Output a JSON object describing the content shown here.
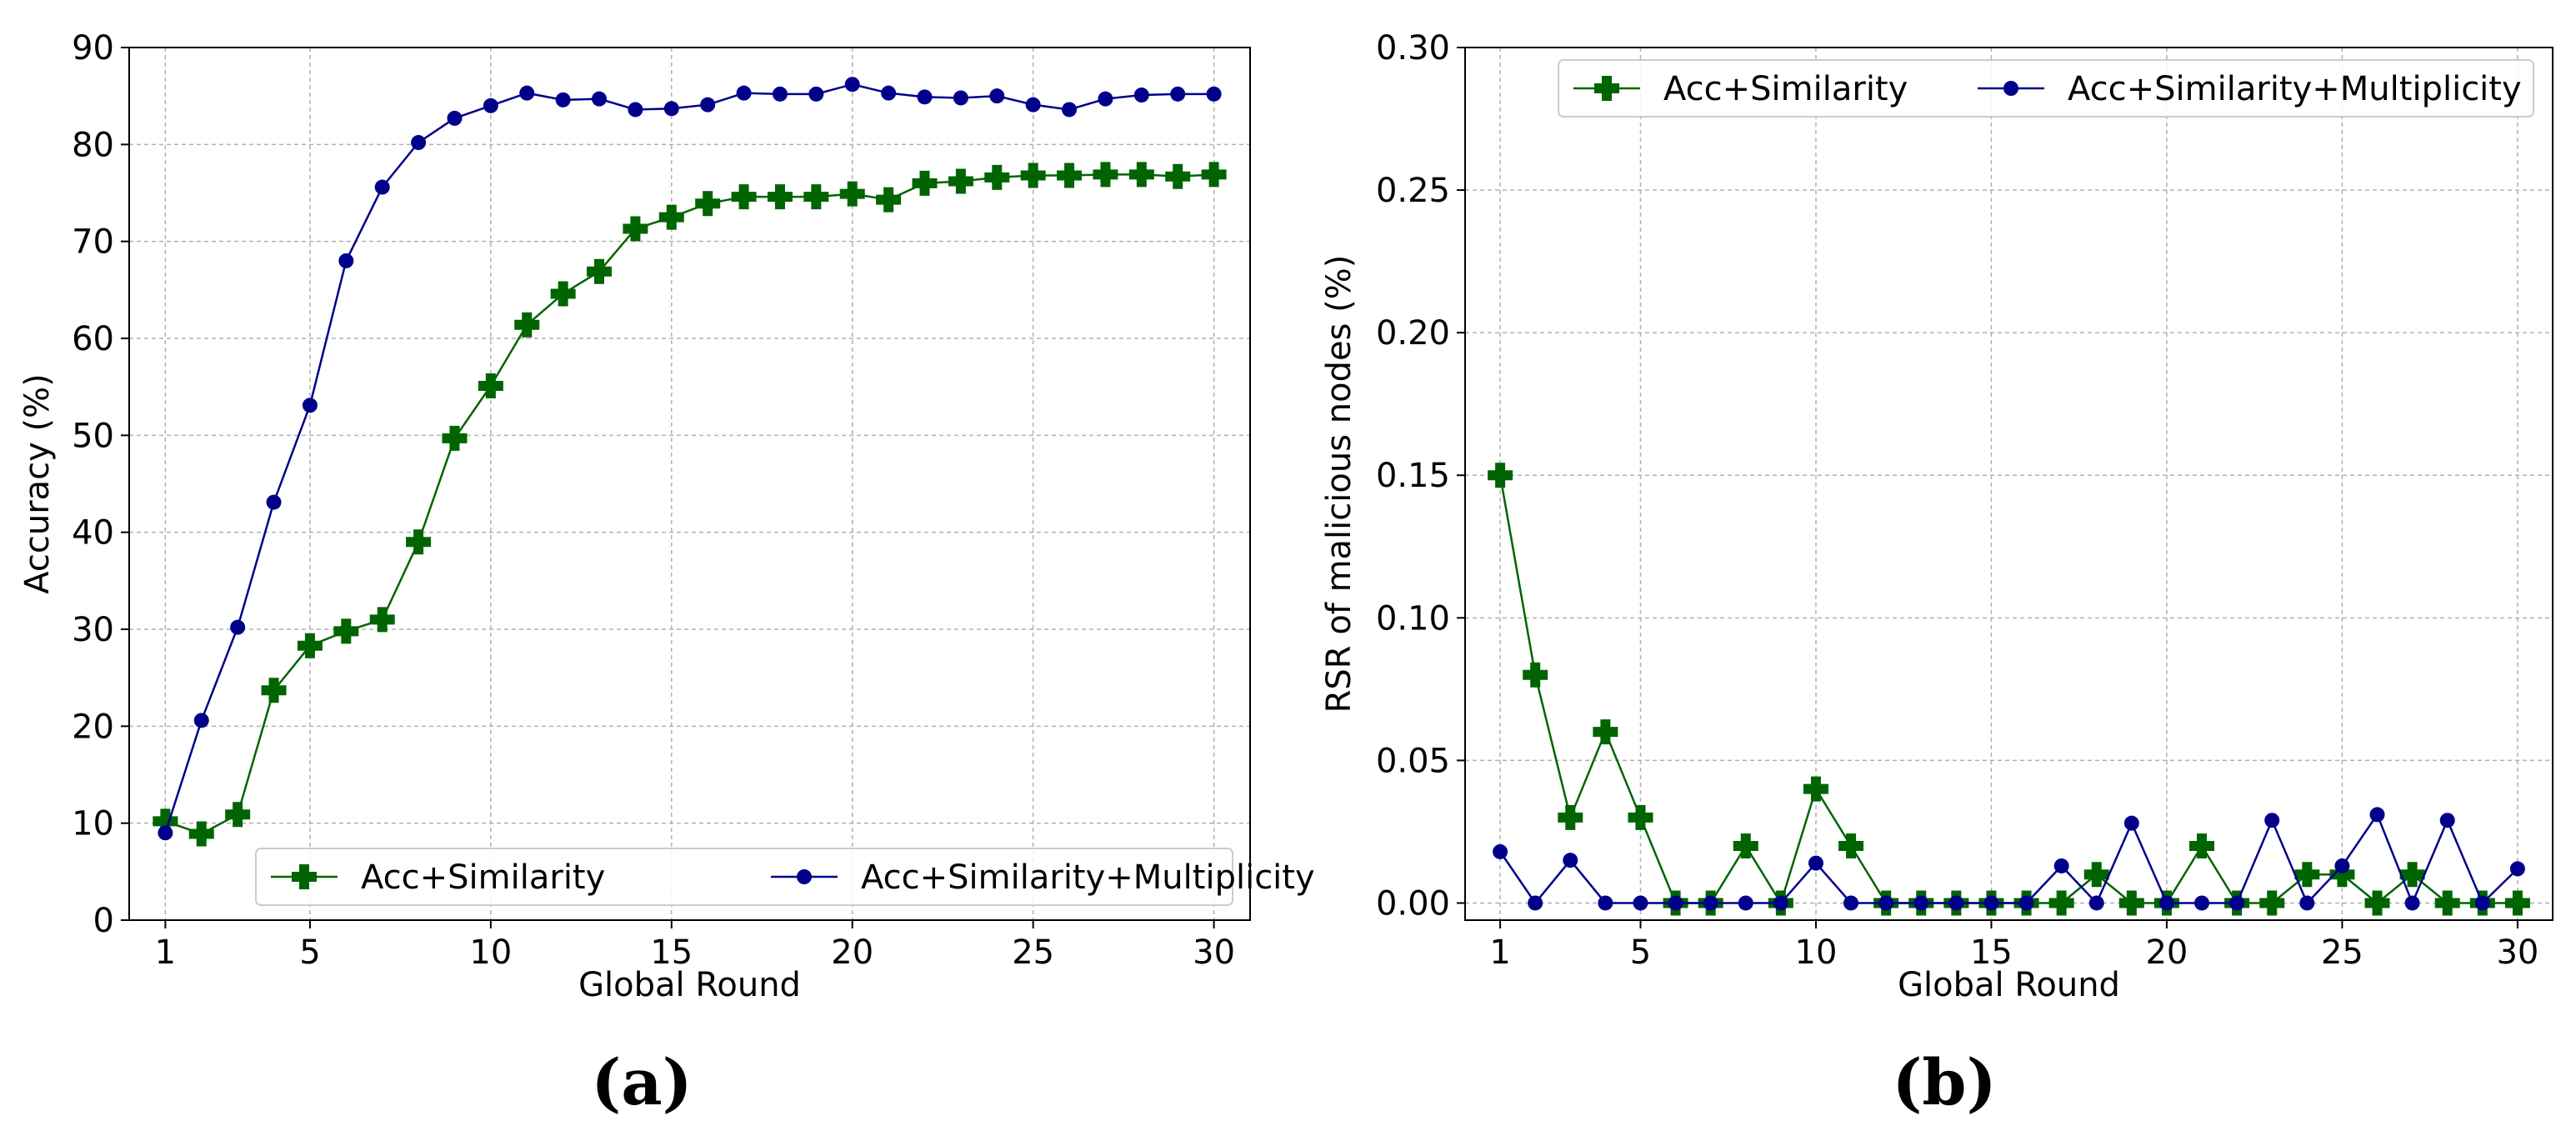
{
  "colors": {
    "green": "#006400",
    "navy": "#00008b",
    "grid": "#b0b0b0"
  },
  "chart_data": [
    {
      "type": "line",
      "panel_label": "(a)",
      "xlabel": "Global Round",
      "ylabel": "Accuracy (%)",
      "xlim": [
        0,
        31
      ],
      "ylim": [
        0,
        90
      ],
      "xticks": [
        1,
        5,
        10,
        15,
        20,
        25,
        30
      ],
      "xtick_labels": [
        "1",
        "5",
        "10",
        "15",
        "20",
        "25",
        "30"
      ],
      "yticks": [
        0,
        10,
        20,
        30,
        40,
        50,
        60,
        70,
        80,
        90
      ],
      "ytick_labels": [
        "0",
        "10",
        "20",
        "30",
        "40",
        "50",
        "60",
        "70",
        "80",
        "90"
      ],
      "grid": true,
      "legend_position": "lower-right",
      "x": [
        1,
        2,
        3,
        4,
        5,
        6,
        7,
        8,
        9,
        10,
        11,
        12,
        13,
        14,
        15,
        16,
        17,
        18,
        19,
        20,
        21,
        22,
        23,
        24,
        25,
        26,
        27,
        28,
        29,
        30
      ],
      "series": [
        {
          "name": "Acc+Similarity",
          "marker": "plus",
          "color": "#006400",
          "values": [
            10.2,
            8.9,
            10.9,
            23.7,
            28.3,
            29.8,
            31.0,
            39.0,
            49.7,
            55.1,
            61.4,
            64.6,
            66.9,
            71.3,
            72.5,
            73.9,
            74.6,
            74.6,
            74.6,
            74.9,
            74.3,
            76.0,
            76.2,
            76.6,
            76.8,
            76.8,
            76.9,
            76.9,
            76.7,
            76.9
          ]
        },
        {
          "name": "Acc+Similarity+Multiplicity",
          "marker": "circle",
          "color": "#00008b",
          "values": [
            9.0,
            20.6,
            30.2,
            43.1,
            53.1,
            68.0,
            75.6,
            80.2,
            82.7,
            84.0,
            85.3,
            84.6,
            84.7,
            83.6,
            83.7,
            84.1,
            85.3,
            85.2,
            85.2,
            86.2,
            85.3,
            84.9,
            84.8,
            85.0,
            84.1,
            83.6,
            84.7,
            85.1,
            85.2,
            85.2
          ]
        }
      ]
    },
    {
      "type": "line",
      "panel_label": "(b)",
      "xlabel": "Global Round",
      "ylabel": "RSR of malicious nodes (%)",
      "xlim": [
        0,
        31
      ],
      "ylim": [
        -0.006,
        0.3
      ],
      "xticks": [
        1,
        5,
        10,
        15,
        20,
        25,
        30
      ],
      "xtick_labels": [
        "1",
        "5",
        "10",
        "15",
        "20",
        "25",
        "30"
      ],
      "yticks": [
        0.0,
        0.05,
        0.1,
        0.15,
        0.2,
        0.25,
        0.3
      ],
      "ytick_labels": [
        "0.00",
        "0.05",
        "0.10",
        "0.15",
        "0.20",
        "0.25",
        "0.30"
      ],
      "grid": true,
      "legend_position": "top",
      "x": [
        1,
        2,
        3,
        4,
        5,
        6,
        7,
        8,
        9,
        10,
        11,
        12,
        13,
        14,
        15,
        16,
        17,
        18,
        19,
        20,
        21,
        22,
        23,
        24,
        25,
        26,
        27,
        28,
        29,
        30
      ],
      "series": [
        {
          "name": "Acc+Similarity",
          "marker": "plus",
          "color": "#006400",
          "values": [
            0.15,
            0.08,
            0.03,
            0.06,
            0.03,
            0.0,
            0.0,
            0.02,
            0.0,
            0.04,
            0.02,
            0.0,
            0.0,
            0.0,
            0.0,
            0.0,
            0.0,
            0.01,
            0.0,
            0.0,
            0.02,
            0.0,
            0.0,
            0.01,
            0.01,
            0.0,
            0.01,
            0.0,
            0.0,
            0.0
          ]
        },
        {
          "name": "Acc+Similarity+Multiplicity",
          "marker": "circle",
          "color": "#00008b",
          "values": [
            0.018,
            0.0,
            0.015,
            0.0,
            0.0,
            0.0,
            0.0,
            0.0,
            0.0,
            0.014,
            0.0,
            0.0,
            0.0,
            0.0,
            0.0,
            0.0,
            0.013,
            0.0,
            0.028,
            0.0,
            0.0,
            0.0,
            0.029,
            0.0,
            0.013,
            0.031,
            0.0,
            0.029,
            0.0,
            0.012
          ]
        }
      ]
    }
  ]
}
